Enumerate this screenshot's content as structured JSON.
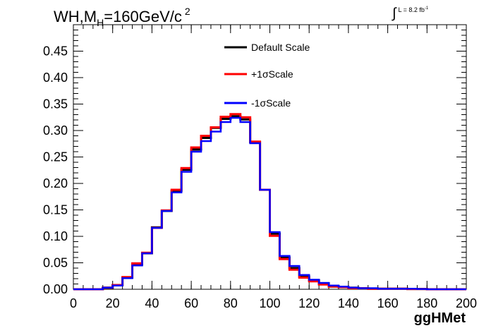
{
  "chart_data": {
    "type": "histogram-step",
    "title_main": "WH,M",
    "title_sub": "H",
    "title_rest": "=160GeV/c",
    "title_sup": "2",
    "lumi_text": "L = 8.2 fb",
    "lumi_sup": "-1",
    "xlabel": "ggHMet",
    "xlim": [
      0,
      200
    ],
    "ylim": [
      0,
      0.5
    ],
    "xticks": [
      0,
      20,
      40,
      60,
      80,
      100,
      120,
      140,
      160,
      180,
      200
    ],
    "xtick_labels": [
      "0",
      "20",
      "40",
      "60",
      "80",
      "100",
      "120",
      "140",
      "160",
      "180",
      "200"
    ],
    "yticks": [
      0.0,
      0.05,
      0.1,
      0.15,
      0.2,
      0.25,
      0.3,
      0.35,
      0.4,
      0.45
    ],
    "ytick_labels": [
      "0.00",
      "0.05",
      "0.10",
      "0.15",
      "0.20",
      "0.25",
      "0.30",
      "0.35",
      "0.40",
      "0.45"
    ],
    "bin_edges": [
      0,
      5,
      10,
      15,
      20,
      25,
      30,
      35,
      40,
      45,
      50,
      55,
      60,
      65,
      70,
      75,
      80,
      85,
      90,
      95,
      100,
      105,
      110,
      115,
      120,
      125,
      130,
      135,
      140,
      145,
      150,
      155,
      160,
      165,
      170,
      175,
      180,
      185,
      190,
      195,
      200
    ],
    "series": [
      {
        "name": "Default Scale",
        "color": "#000000",
        "values": [
          0,
          0,
          0,
          0.003,
          0.008,
          0.022,
          0.047,
          0.068,
          0.117,
          0.148,
          0.186,
          0.226,
          0.264,
          0.286,
          0.305,
          0.322,
          0.327,
          0.321,
          0.278,
          0.188,
          0.105,
          0.06,
          0.04,
          0.024,
          0.017,
          0.011,
          0.006,
          0.004,
          0.003,
          0.002,
          0.001,
          0.001,
          0.001,
          0.001,
          0.0005,
          0.0005,
          0,
          0,
          0,
          0,
          0
        ]
      },
      {
        "name": "+1σScale",
        "color": "#ff0000",
        "values": [
          0,
          0,
          0,
          0.003,
          0.008,
          0.023,
          0.049,
          0.069,
          0.116,
          0.149,
          0.188,
          0.229,
          0.268,
          0.29,
          0.306,
          0.326,
          0.331,
          0.325,
          0.279,
          0.188,
          0.101,
          0.057,
          0.037,
          0.022,
          0.015,
          0.009,
          0.005,
          0.004,
          0.002,
          0.002,
          0.001,
          0.001,
          0.001,
          0.001,
          0.0005,
          0.0005,
          0,
          0,
          0,
          0,
          0
        ]
      },
      {
        "name": "-1σScale",
        "color": "#0000ff",
        "values": [
          0,
          0,
          0,
          0.003,
          0.007,
          0.021,
          0.045,
          0.068,
          0.116,
          0.148,
          0.183,
          0.222,
          0.26,
          0.28,
          0.298,
          0.316,
          0.324,
          0.316,
          0.276,
          0.188,
          0.108,
          0.063,
          0.044,
          0.027,
          0.018,
          0.012,
          0.007,
          0.005,
          0.003,
          0.002,
          0.002,
          0.001,
          0.001,
          0.001,
          0.001,
          0.0005,
          0,
          0,
          0,
          0,
          0
        ]
      }
    ],
    "legend_placement": "top-center",
    "grid": false
  }
}
